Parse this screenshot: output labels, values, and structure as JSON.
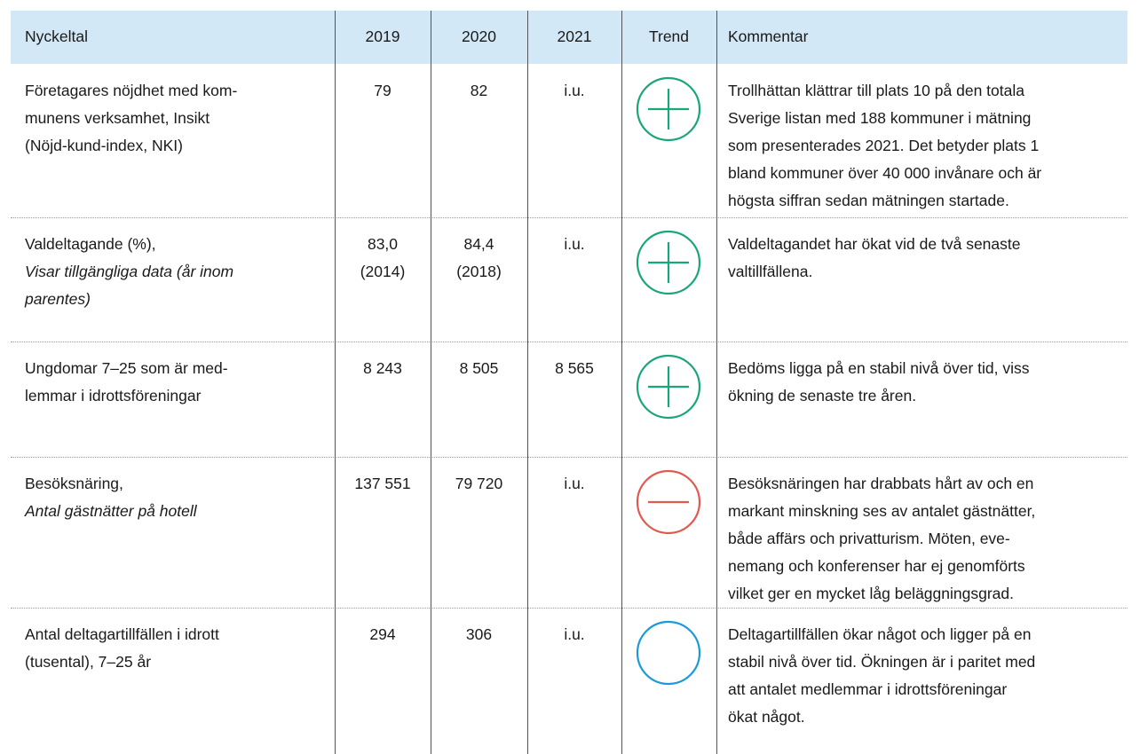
{
  "table": {
    "header": [
      "Nyckeltal",
      "2019",
      "2020",
      "2021",
      "Trend",
      "Kommentar"
    ],
    "rows": [
      {
        "cells": [
          [
            "Företagares nöjdhet med kom-",
            "munens verksamhet, Insikt",
            "(Nöjd-kund-index, NKI)"
          ],
          [
            "79"
          ],
          [
            "82"
          ],
          [
            "i.u."
          ],
          [
            "Trollhättan klättrar till plats 10 på den totala",
            "Sverige listan med 188 kommuner i mätning",
            "som presenterades 2021. Det betyder plats 1",
            "bland kommuner över 40 000 invånare och är",
            "högsta siffran sedan mätningen startade."
          ]
        ]
      },
      {
        "cells": [
          [
            "Valdeltagande (%),",
            "Visar tillgängliga data (år inom",
            "parentes)"
          ],
          [
            "83,0",
            "(2014)"
          ],
          [
            "84,4",
            "(2018)"
          ],
          [
            "i.u."
          ],
          [
            "Valdeltagandet har ökat vid de två senaste",
            "valtillfällena."
          ]
        ]
      },
      {
        "cells": [
          [
            "Ungdomar 7–25 som är med-",
            "lemmar i idrottsföreningar"
          ],
          [
            "8 243"
          ],
          [
            "8 505"
          ],
          [
            "8 565"
          ],
          [
            "Bedöms ligga på en stabil nivå över tid, viss",
            "ökning de senaste tre åren."
          ]
        ]
      },
      {
        "cells": [
          [
            "Besöksnäring,",
            "Antal gästnätter på hotell"
          ],
          [
            "137 551"
          ],
          [
            "79 720"
          ],
          [
            "i.u."
          ],
          [
            "Besöksnäringen har drabbats hårt av och en",
            "markant minskning ses av antalet gästnätter,",
            "både affärs och privatturism. Möten, eve-",
            "nemang och konferenser har ej genomförts",
            "vilket ger en mycket låg beläggningsgrad."
          ]
        ]
      },
      {
        "cells": [
          [
            "Antal deltagartillfällen i idrott",
            "(tusental), 7–25 år"
          ],
          [
            "294"
          ],
          [
            "306"
          ],
          [
            "i.u."
          ],
          [
            "Deltagartillfällen ökar något och ligger på en",
            "stabil nivå över tid. Ökningen är i paritet med",
            "att antalet medlemmar i idrottsföreningar",
            "ökat något."
          ]
        ]
      }
    ]
  }
}
